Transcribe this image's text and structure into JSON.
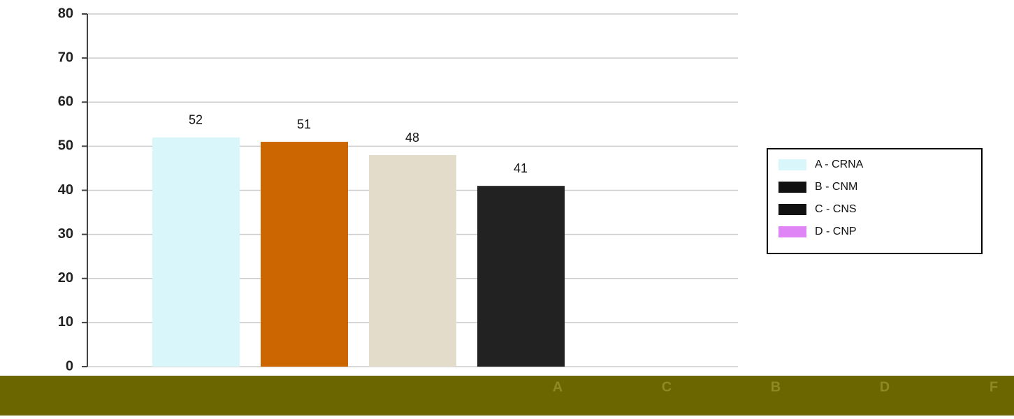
{
  "chart_data": {
    "type": "bar",
    "categories": [
      "A",
      "C",
      "B",
      "D",
      "F"
    ],
    "values": [
      52,
      51,
      48,
      41,
      null
    ],
    "colors": [
      "#d9f7fb",
      "#cc6600",
      "#e3dccb",
      "#222222",
      "#e085f5"
    ],
    "ylim": [
      0,
      80
    ],
    "yticks": [
      0,
      10,
      20,
      30,
      40,
      50,
      60,
      70,
      80
    ],
    "grid": true,
    "legend": [
      {
        "name": "A - CRNA",
        "color": "#d9f7fb"
      },
      {
        "name": "B - CNM",
        "color": "#111111"
      },
      {
        "name": "C - CNS",
        "color": "#111111"
      },
      {
        "name": "D - CNP",
        "color": "#e085f5"
      }
    ]
  }
}
